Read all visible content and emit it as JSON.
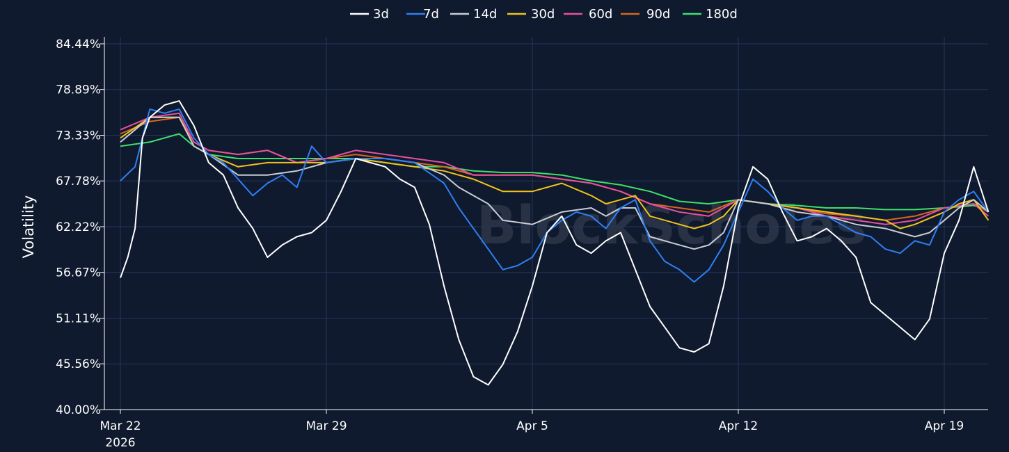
{
  "watermark": "BlockScholes",
  "chart_data": {
    "type": "line",
    "ylabel": "Volatility",
    "ylim": [
      40.0,
      84.44
    ],
    "y_ticks": [
      "40.00%",
      "45.56%",
      "51.11%",
      "56.67%",
      "62.22%",
      "67.78%",
      "73.33%",
      "78.89%",
      "84.44%"
    ],
    "y_tick_values": [
      40.0,
      45.56,
      51.11,
      56.67,
      62.22,
      67.78,
      73.33,
      78.89,
      84.44
    ],
    "x_range": [
      "2026-03-22",
      "2026-04-20 12:00"
    ],
    "x_ticks": [
      {
        "date": "2026-03-22",
        "label": "Mar 22",
        "sublabel": "2026"
      },
      {
        "date": "2026-03-29",
        "label": "Mar 29",
        "sublabel": ""
      },
      {
        "date": "2026-04-05",
        "label": "Apr 5",
        "sublabel": ""
      },
      {
        "date": "2026-04-12",
        "label": "Apr 12",
        "sublabel": ""
      },
      {
        "date": "2026-04-19",
        "label": "Apr 19",
        "sublabel": ""
      }
    ],
    "grid": true,
    "legend_position": "top-center",
    "series": [
      {
        "name": "3d",
        "color": "#ffffff",
        "x": [
          "2026-03-22 00:00",
          "2026-03-22 06:00",
          "2026-03-22 12:00",
          "2026-03-22 18:00",
          "2026-03-23 00:00",
          "2026-03-23 12:00",
          "2026-03-24 00:00",
          "2026-03-24 12:00",
          "2026-03-25 00:00",
          "2026-03-25 12:00",
          "2026-03-26 00:00",
          "2026-03-26 12:00",
          "2026-03-27 00:00",
          "2026-03-27 12:00",
          "2026-03-28 00:00",
          "2026-03-28 12:00",
          "2026-03-29 00:00",
          "2026-03-29 12:00",
          "2026-03-30 00:00",
          "2026-03-30 12:00",
          "2026-03-31 00:00",
          "2026-03-31 12:00",
          "2026-04-01 00:00",
          "2026-04-01 12:00",
          "2026-04-02 00:00",
          "2026-04-02 12:00",
          "2026-04-03 00:00",
          "2026-04-03 12:00",
          "2026-04-04 00:00",
          "2026-04-04 12:00",
          "2026-04-05 00:00",
          "2026-04-05 12:00",
          "2026-04-06 00:00",
          "2026-04-06 12:00",
          "2026-04-07 00:00",
          "2026-04-07 12:00",
          "2026-04-08 00:00",
          "2026-04-08 12:00",
          "2026-04-09 00:00",
          "2026-04-09 12:00",
          "2026-04-10 00:00",
          "2026-04-10 12:00",
          "2026-04-11 00:00",
          "2026-04-11 12:00",
          "2026-04-12 00:00",
          "2026-04-12 12:00",
          "2026-04-13 00:00",
          "2026-04-13 12:00",
          "2026-04-14 00:00",
          "2026-04-14 12:00",
          "2026-04-15 00:00",
          "2026-04-15 12:00",
          "2026-04-16 00:00",
          "2026-04-16 12:00",
          "2026-04-17 00:00",
          "2026-04-17 12:00",
          "2026-04-18 00:00",
          "2026-04-18 12:00",
          "2026-04-19 00:00",
          "2026-04-19 12:00",
          "2026-04-20 00:00",
          "2026-04-20 12:00"
        ],
        "values": [
          56.0,
          58.5,
          62.0,
          73.0,
          75.5,
          77.0,
          77.5,
          74.5,
          70.0,
          68.5,
          64.5,
          62.0,
          58.5,
          60.0,
          61.0,
          61.5,
          63.0,
          66.5,
          70.5,
          70.0,
          69.5,
          68.0,
          67.0,
          62.5,
          55.0,
          48.5,
          44.0,
          43.0,
          45.5,
          49.5,
          55.0,
          61.5,
          63.5,
          60.0,
          59.0,
          60.5,
          61.5,
          57.0,
          52.5,
          50.0,
          47.5,
          47.0,
          48.0,
          55.0,
          64.5,
          69.5,
          68.0,
          64.0,
          60.5,
          61.0,
          62.0,
          60.5,
          58.5,
          53.0,
          51.5,
          50.0,
          48.5,
          51.0,
          59.0,
          63.0,
          69.5,
          64.0
        ]
      },
      {
        "name": "7d",
        "color": "#2f7ff5",
        "x": [
          "2026-03-22 00:00",
          "2026-03-22 12:00",
          "2026-03-23 00:00",
          "2026-03-23 12:00",
          "2026-03-24 00:00",
          "2026-03-24 12:00",
          "2026-03-25 00:00",
          "2026-03-25 12:00",
          "2026-03-26 00:00",
          "2026-03-26 12:00",
          "2026-03-27 00:00",
          "2026-03-27 12:00",
          "2026-03-28 00:00",
          "2026-03-28 12:00",
          "2026-03-29 00:00",
          "2026-03-30 00:00",
          "2026-03-31 00:00",
          "2026-04-01 00:00",
          "2026-04-02 00:00",
          "2026-04-02 12:00",
          "2026-04-03 00:00",
          "2026-04-03 12:00",
          "2026-04-04 00:00",
          "2026-04-04 12:00",
          "2026-04-05 00:00",
          "2026-04-05 12:00",
          "2026-04-06 00:00",
          "2026-04-06 12:00",
          "2026-04-07 00:00",
          "2026-04-07 12:00",
          "2026-04-08 00:00",
          "2026-04-08 12:00",
          "2026-04-09 00:00",
          "2026-04-09 12:00",
          "2026-04-10 00:00",
          "2026-04-10 12:00",
          "2026-04-11 00:00",
          "2026-04-11 12:00",
          "2026-04-12 00:00",
          "2026-04-12 12:00",
          "2026-04-13 00:00",
          "2026-04-13 12:00",
          "2026-04-14 00:00",
          "2026-04-14 12:00",
          "2026-04-15 00:00",
          "2026-04-15 12:00",
          "2026-04-16 00:00",
          "2026-04-16 12:00",
          "2026-04-17 00:00",
          "2026-04-17 12:00",
          "2026-04-18 00:00",
          "2026-04-18 12:00",
          "2026-04-19 00:00",
          "2026-04-19 12:00",
          "2026-04-20 00:00",
          "2026-04-20 12:00"
        ],
        "values": [
          67.8,
          69.5,
          76.5,
          76.0,
          76.5,
          73.0,
          71.0,
          70.0,
          68.0,
          66.0,
          67.5,
          68.5,
          67.0,
          72.0,
          70.0,
          70.5,
          70.5,
          70.0,
          67.5,
          64.5,
          62.0,
          59.5,
          57.0,
          57.5,
          58.5,
          61.5,
          63.0,
          64.0,
          63.5,
          62.0,
          64.5,
          65.5,
          60.5,
          58.0,
          57.0,
          55.5,
          57.0,
          60.0,
          64.0,
          68.0,
          66.5,
          64.5,
          63.0,
          63.5,
          63.5,
          62.5,
          61.5,
          61.0,
          59.5,
          59.0,
          60.5,
          60.0,
          64.0,
          65.5,
          66.5,
          64.0
        ]
      },
      {
        "name": "14d",
        "color": "#c8ccd4",
        "x": [
          "2026-03-22 00:00",
          "2026-03-23 00:00",
          "2026-03-24 00:00",
          "2026-03-24 12:00",
          "2026-03-25 00:00",
          "2026-03-26 00:00",
          "2026-03-27 00:00",
          "2026-03-28 00:00",
          "2026-03-29 00:00",
          "2026-03-30 00:00",
          "2026-03-31 00:00",
          "2026-04-01 00:00",
          "2026-04-02 00:00",
          "2026-04-02 12:00",
          "2026-04-03 00:00",
          "2026-04-03 12:00",
          "2026-04-04 00:00",
          "2026-04-05 00:00",
          "2026-04-06 00:00",
          "2026-04-07 00:00",
          "2026-04-07 12:00",
          "2026-04-08 00:00",
          "2026-04-08 12:00",
          "2026-04-09 00:00",
          "2026-04-10 00:00",
          "2026-04-10 12:00",
          "2026-04-11 00:00",
          "2026-04-11 12:00",
          "2026-04-12 00:00",
          "2026-04-13 00:00",
          "2026-04-14 00:00",
          "2026-04-15 00:00",
          "2026-04-16 00:00",
          "2026-04-17 00:00",
          "2026-04-17 12:00",
          "2026-04-18 00:00",
          "2026-04-18 12:00",
          "2026-04-19 00:00",
          "2026-04-19 12:00",
          "2026-04-20 00:00",
          "2026-04-20 12:00"
        ],
        "values": [
          72.5,
          75.5,
          75.5,
          72.0,
          71.0,
          68.5,
          68.5,
          69.0,
          70.0,
          70.5,
          70.5,
          70.0,
          68.5,
          67.0,
          66.0,
          65.0,
          63.0,
          62.5,
          64.0,
          64.5,
          63.5,
          64.5,
          64.5,
          61.0,
          60.0,
          59.5,
          60.0,
          61.5,
          65.5,
          65.0,
          64.0,
          63.5,
          62.5,
          62.0,
          61.5,
          61.0,
          61.5,
          63.0,
          64.5,
          65.5,
          64.0
        ]
      },
      {
        "name": "30d",
        "color": "#f2c21a",
        "x": [
          "2026-03-22 00:00",
          "2026-03-23 00:00",
          "2026-03-24 00:00",
          "2026-03-24 12:00",
          "2026-03-25 00:00",
          "2026-03-26 00:00",
          "2026-03-27 00:00",
          "2026-03-28 00:00",
          "2026-03-29 00:00",
          "2026-03-30 00:00",
          "2026-03-31 00:00",
          "2026-04-01 00:00",
          "2026-04-02 00:00",
          "2026-04-03 00:00",
          "2026-04-04 00:00",
          "2026-04-05 00:00",
          "2026-04-06 00:00",
          "2026-04-07 00:00",
          "2026-04-07 12:00",
          "2026-04-08 00:00",
          "2026-04-08 12:00",
          "2026-04-09 00:00",
          "2026-04-10 00:00",
          "2026-04-10 12:00",
          "2026-04-11 00:00",
          "2026-04-11 12:00",
          "2026-04-12 00:00",
          "2026-04-13 00:00",
          "2026-04-14 00:00",
          "2026-04-15 00:00",
          "2026-04-16 00:00",
          "2026-04-17 00:00",
          "2026-04-17 12:00",
          "2026-04-18 00:00",
          "2026-04-19 00:00",
          "2026-04-19 12:00",
          "2026-04-20 00:00",
          "2026-04-20 12:00"
        ],
        "values": [
          73.0,
          75.5,
          75.5,
          72.0,
          71.0,
          69.5,
          70.0,
          70.0,
          70.0,
          70.5,
          70.0,
          69.5,
          69.0,
          68.0,
          66.5,
          66.5,
          67.5,
          66.0,
          65.0,
          65.5,
          66.0,
          63.5,
          62.5,
          62.0,
          62.5,
          63.5,
          65.5,
          65.0,
          64.5,
          64.0,
          63.5,
          63.0,
          62.0,
          62.5,
          64.0,
          65.0,
          65.5,
          63.0
        ]
      },
      {
        "name": "60d",
        "color": "#e84f9f",
        "x": [
          "2026-03-22 00:00",
          "2026-03-23 00:00",
          "2026-03-24 00:00",
          "2026-03-24 12:00",
          "2026-03-25 00:00",
          "2026-03-26 00:00",
          "2026-03-27 00:00",
          "2026-03-28 00:00",
          "2026-03-29 00:00",
          "2026-03-30 00:00",
          "2026-03-31 00:00",
          "2026-04-01 00:00",
          "2026-04-02 00:00",
          "2026-04-03 00:00",
          "2026-04-04 00:00",
          "2026-04-05 00:00",
          "2026-04-06 00:00",
          "2026-04-07 00:00",
          "2026-04-08 00:00",
          "2026-04-09 00:00",
          "2026-04-10 00:00",
          "2026-04-11 00:00",
          "2026-04-12 00:00",
          "2026-04-13 00:00",
          "2026-04-14 00:00",
          "2026-04-15 00:00",
          "2026-04-16 00:00",
          "2026-04-17 00:00",
          "2026-04-18 00:00",
          "2026-04-19 00:00",
          "2026-04-20 00:00",
          "2026-04-20 12:00"
        ],
        "values": [
          74.0,
          75.5,
          76.0,
          72.5,
          71.5,
          71.0,
          71.5,
          70.0,
          70.5,
          71.5,
          71.0,
          70.5,
          70.0,
          68.5,
          68.5,
          68.5,
          68.0,
          67.5,
          66.5,
          65.0,
          64.0,
          63.5,
          65.5,
          65.0,
          64.5,
          63.5,
          63.0,
          62.5,
          63.0,
          64.5,
          65.0,
          63.5
        ]
      },
      {
        "name": "90d",
        "color": "#d9651f",
        "x": [
          "2026-03-22 00:00",
          "2026-03-23 00:00",
          "2026-03-24 00:00",
          "2026-03-24 12:00",
          "2026-03-25 00:00",
          "2026-03-26 00:00",
          "2026-03-27 00:00",
          "2026-03-28 00:00",
          "2026-03-29 00:00",
          "2026-03-30 00:00",
          "2026-03-31 00:00",
          "2026-04-01 00:00",
          "2026-04-02 00:00",
          "2026-04-03 00:00",
          "2026-04-04 00:00",
          "2026-04-05 00:00",
          "2026-04-06 00:00",
          "2026-04-07 00:00",
          "2026-04-08 00:00",
          "2026-04-09 00:00",
          "2026-04-10 00:00",
          "2026-04-11 00:00",
          "2026-04-12 00:00",
          "2026-04-13 00:00",
          "2026-04-14 00:00",
          "2026-04-15 00:00",
          "2026-04-16 00:00",
          "2026-04-17 00:00",
          "2026-04-18 00:00",
          "2026-04-19 00:00",
          "2026-04-20 00:00",
          "2026-04-20 12:00"
        ],
        "values": [
          73.5,
          75.0,
          75.5,
          72.5,
          71.5,
          71.0,
          71.5,
          70.0,
          70.5,
          71.0,
          70.5,
          70.0,
          69.5,
          68.5,
          68.5,
          68.5,
          68.0,
          67.5,
          66.5,
          65.0,
          64.5,
          64.0,
          65.5,
          65.0,
          64.5,
          63.8,
          63.5,
          63.0,
          63.5,
          64.5,
          65.0,
          64.0
        ]
      },
      {
        "name": "180d",
        "color": "#3ee06a",
        "x": [
          "2026-03-22 00:00",
          "2026-03-23 00:00",
          "2026-03-24 00:00",
          "2026-03-24 12:00",
          "2026-03-25 00:00",
          "2026-03-26 00:00",
          "2026-03-27 00:00",
          "2026-03-28 00:00",
          "2026-03-29 00:00",
          "2026-03-30 00:00",
          "2026-03-31 00:00",
          "2026-04-01 00:00",
          "2026-04-02 00:00",
          "2026-04-03 00:00",
          "2026-04-04 00:00",
          "2026-04-05 00:00",
          "2026-04-06 00:00",
          "2026-04-07 00:00",
          "2026-04-08 00:00",
          "2026-04-09 00:00",
          "2026-04-10 00:00",
          "2026-04-11 00:00",
          "2026-04-12 00:00",
          "2026-04-13 00:00",
          "2026-04-14 00:00",
          "2026-04-15 00:00",
          "2026-04-16 00:00",
          "2026-04-17 00:00",
          "2026-04-18 00:00",
          "2026-04-19 00:00",
          "2026-04-20 00:00",
          "2026-04-20 12:00"
        ],
        "values": [
          72.0,
          72.5,
          73.5,
          72.0,
          71.0,
          70.5,
          70.5,
          70.5,
          70.5,
          70.5,
          70.0,
          69.5,
          69.5,
          69.0,
          68.8,
          68.8,
          68.5,
          67.8,
          67.3,
          66.5,
          65.3,
          65.0,
          65.5,
          65.0,
          64.8,
          64.5,
          64.5,
          64.3,
          64.3,
          64.5,
          64.8,
          64.3
        ]
      }
    ]
  }
}
